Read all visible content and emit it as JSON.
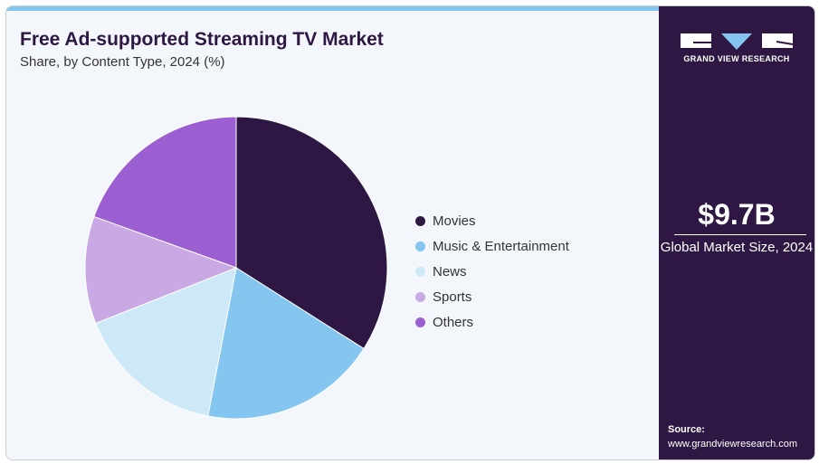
{
  "header": {
    "title": "Free Ad-supported Streaming TV Market",
    "subtitle": "Share, by Content Type, 2024 (%)"
  },
  "sidebar": {
    "brand": "GRAND VIEW RESEARCH",
    "market_size": "$9.7B",
    "market_caption": "Global Market Size, 2024",
    "source_label": "Source:",
    "source_url": "www.grandviewresearch.com",
    "background": "#2e1843"
  },
  "chart_data": {
    "type": "pie",
    "title": "Free Ad-supported Streaming TV Market",
    "subtitle": "Share, by Content Type, 2024 (%)",
    "legend_position": "right",
    "categories": [
      "Movies",
      "Music & Entertainment",
      "News",
      "Sports",
      "Others"
    ],
    "values": [
      34,
      19,
      16,
      11.5,
      19.5
    ],
    "colors": [
      "#2e1843",
      "#84c6f0",
      "#cde8f7",
      "#c8a9e4",
      "#9b5fd1"
    ]
  }
}
